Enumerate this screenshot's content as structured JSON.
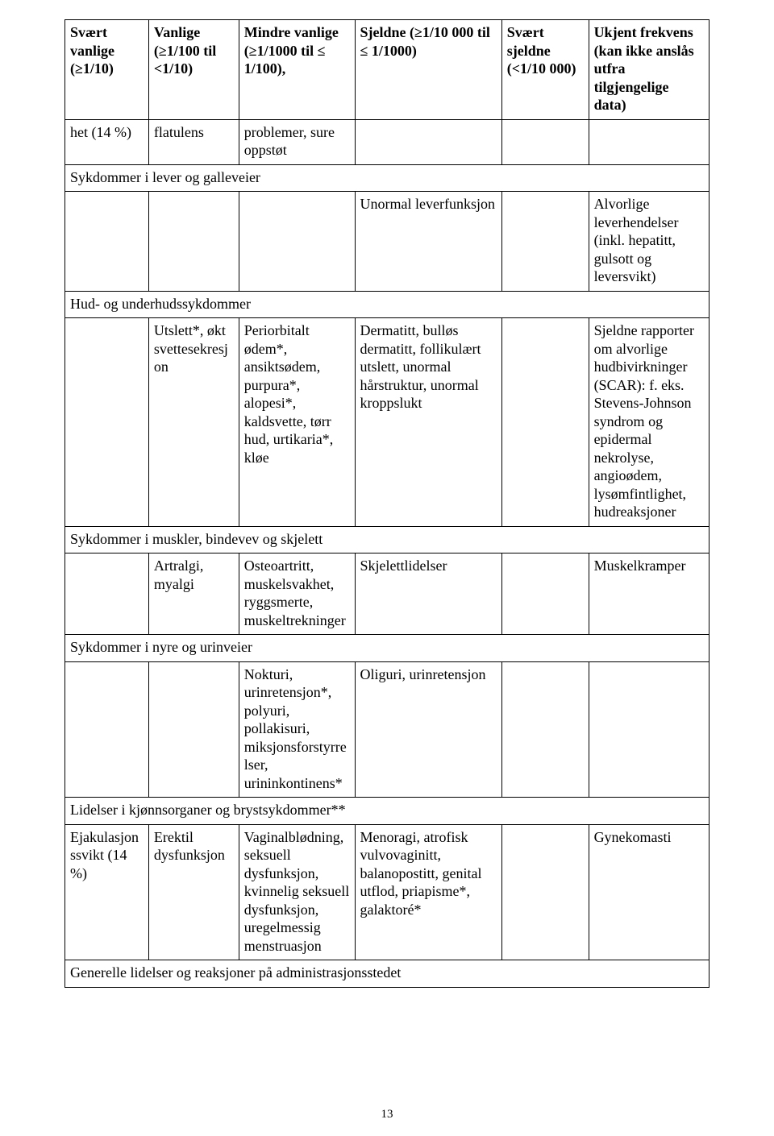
{
  "header": {
    "c1": "Svært vanlige (≥1/10)",
    "c2": "Vanlige (≥1/100 til <1/10)",
    "c3": "Mindre vanlige (≥1/1000 til ≤ 1/100),",
    "c4": "Sjeldne (≥1/10 000 til ≤ 1/1000)",
    "c5": "Svært sjeldne (<1/10 000)",
    "c6": "Ukjent frekvens (kan ikke anslås utfra tilgjengelige data)"
  },
  "row_top": {
    "c1": "het (14 %)",
    "c2": "flatulens",
    "c3": "problemer, sure oppstøt",
    "c4": "",
    "c5": "",
    "c6": ""
  },
  "sections": {
    "liver_title": "Sykdommer i lever og galleveier",
    "liver": {
      "c1": "",
      "c2": "",
      "c3": "",
      "c4": "Unormal leverfunksjon",
      "c5": "",
      "c6": "Alvorlige leverhendelser (inkl. hepatitt, gulsott og leversvikt)"
    },
    "skin_title": "Hud- og underhudssykdommer",
    "skin": {
      "c1": "",
      "c2": "Utslett*, økt svettesekresjon",
      "c3": "Periorbitalt ødem*, ansiktsødem, purpura*, alopesi*, kaldsvette, tørr hud, urtikaria*, kløe",
      "c4": "Dermatitt, bulløs dermatitt, follikulært utslett, unormal hårstruktur, unormal kroppslukt",
      "c5": "",
      "c6": "Sjeldne rapporter om alvorlige hudbivirkninger (SCAR): f. eks. Stevens-Johnson syndrom og epidermal nekrolyse, angioødem, lysømfintlighet, hudreaksjoner"
    },
    "muscle_title": "Sykdommer i muskler, bindevev og skjelett",
    "muscle": {
      "c1": "",
      "c2": "Artralgi, myalgi",
      "c3": "Osteoartritt, muskelsvakhet, ryggsmerte, muskeltrekninger",
      "c4": "Skjelettlidelser",
      "c5": "",
      "c6": "Muskelkramper"
    },
    "kidney_title": "Sykdommer i nyre og urinveier",
    "kidney": {
      "c1": "",
      "c2": "",
      "c3": "Nokturi, urinretensjon*, polyuri, pollakisuri, miksjonsforstyrrelser, urininkontinens*",
      "c4": "Oliguri, urinretensjon",
      "c5": "",
      "c6": ""
    },
    "repro_title": "Lidelser i kjønnsorganer og brystsykdommer**",
    "repro": {
      "c1": "Ejakulasjonssvikt (14 %)",
      "c2": "Erektil dysfunksjon",
      "c3": "Vaginalblødning, seksuell dysfunksjon, kvinnelig seksuell dysfunksjon, uregelmessig menstruasjon",
      "c4": "Menoragi, atrofisk vulvovaginitt, balanopostitt, genital utflod, priapisme*, galaktoré*",
      "c5": "",
      "c6": "Gynekomasti"
    },
    "general_title": "Generelle lidelser og reaksjoner på administrasjonsstedet"
  },
  "page_number": "13"
}
